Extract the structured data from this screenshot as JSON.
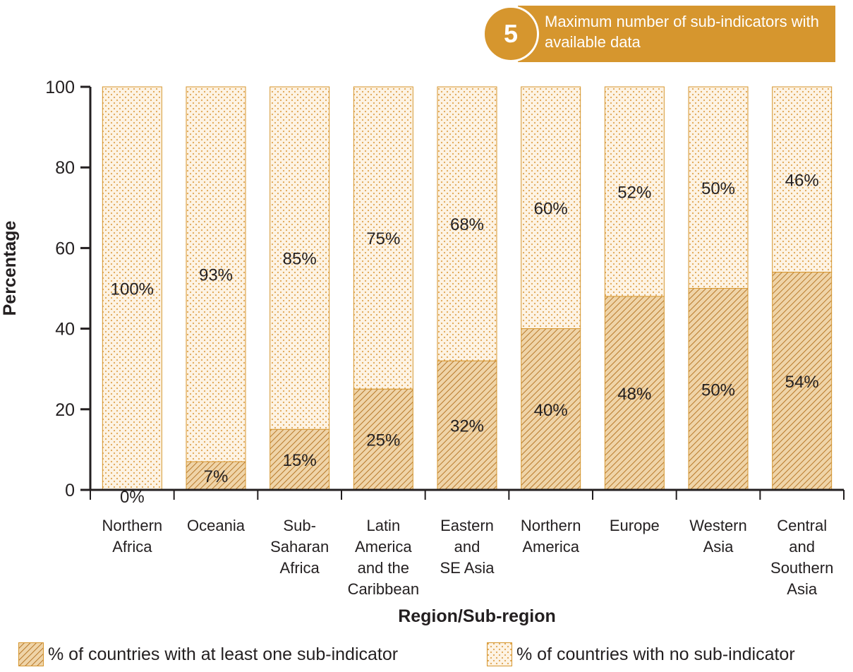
{
  "badge": {
    "number": "5",
    "text": "Maximum number of sub-indicators with available data"
  },
  "colors": {
    "accent": "#d6962e",
    "hatch_fill": "#efd4a8",
    "hatch_line": "#b8792a",
    "dot_fill": "#fdf3e4",
    "dot": "#e0a550",
    "axis": "#231f20"
  },
  "legend": {
    "items": [
      {
        "label": "% of countries with at least one sub-indicator",
        "pattern": "hatch"
      },
      {
        "label": "% of countries with no sub-indicator",
        "pattern": "dots"
      }
    ]
  },
  "chart_data": {
    "type": "bar",
    "stacked": true,
    "categories": [
      [
        "Northern",
        "Africa"
      ],
      [
        "Oceania"
      ],
      [
        "Sub-",
        "Saharan",
        "Africa"
      ],
      [
        "Latin",
        "America",
        "and the",
        "Caribbean"
      ],
      [
        "Eastern",
        "and",
        "SE Asia"
      ],
      [
        "Northern",
        "America"
      ],
      [
        "Europe"
      ],
      [
        "Western",
        "Asia"
      ],
      [
        "Central",
        "and",
        "Southern",
        "Asia"
      ]
    ],
    "series": [
      {
        "name": "% of countries with at least one sub-indicator",
        "values": [
          0,
          7,
          15,
          25,
          32,
          40,
          48,
          50,
          54
        ],
        "labels": [
          "0%",
          "7%",
          "15%",
          "25%",
          "32%",
          "40%",
          "48%",
          "50%",
          "54%"
        ]
      },
      {
        "name": "% of countries with no sub-indicator",
        "values": [
          100,
          93,
          85,
          75,
          68,
          60,
          52,
          50,
          46
        ],
        "labels": [
          "100%",
          "93%",
          "85%",
          "75%",
          "68%",
          "60%",
          "52%",
          "50%",
          "46%"
        ]
      }
    ],
    "xlabel": "Region/Sub-region",
    "ylabel": "Percentage",
    "ylim": [
      0,
      100
    ],
    "yticks": [
      "0",
      "20",
      "40",
      "60",
      "80",
      "100"
    ],
    "grid": false,
    "legend_position": "bottom"
  }
}
